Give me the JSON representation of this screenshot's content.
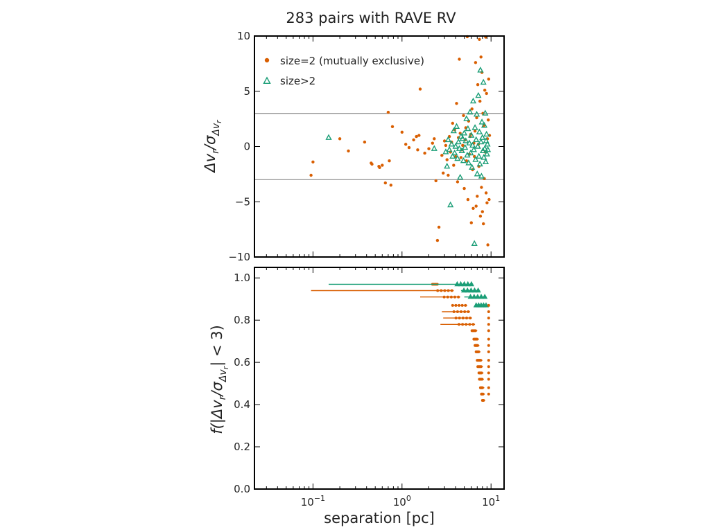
{
  "title": "283 pairs with RAVE RV",
  "colors": {
    "orange": "#d95f02",
    "teal": "#1b9e77",
    "threshold": "#999999"
  },
  "chart_data": [
    {
      "type": "scatter",
      "panel": "top",
      "ylabel": "Δv_r/σ_Δv_r",
      "ylabel_parts": {
        "main": "Δv",
        "sub_r": "r",
        "slash": "/σ",
        "sub": "Δv",
        "sub2": "r"
      },
      "xscale": "log",
      "xlim": [
        0.022,
        14
      ],
      "ylim": [
        -10,
        10
      ],
      "yticks": [
        10,
        5,
        0,
        -5,
        -10
      ],
      "ytick_labels": [
        "10",
        "5",
        "0",
        "−5",
        "−10"
      ],
      "thresholds": [
        3,
        -3
      ],
      "legend_position": "top-left",
      "legend": [
        {
          "label": "size=2 (mutually exclusive)",
          "marker": "circle",
          "color": "#d95f02"
        },
        {
          "label": "size>2",
          "marker": "triangle",
          "color": "#1b9e77"
        }
      ],
      "series": [
        {
          "name": "size=2 (mutually exclusive)",
          "marker": "circle",
          "color": "#d95f02",
          "points": [
            [
              0.095,
              -2.6
            ],
            [
              0.1,
              -1.4
            ],
            [
              0.2,
              0.7
            ],
            [
              0.25,
              -0.4
            ],
            [
              0.38,
              0.4
            ],
            [
              0.45,
              -1.5
            ],
            [
              0.46,
              -1.6
            ],
            [
              0.55,
              -1.8
            ],
            [
              0.56,
              -1.9
            ],
            [
              0.6,
              -1.7
            ],
            [
              0.65,
              -3.3
            ],
            [
              0.7,
              3.1
            ],
            [
              0.72,
              -1.3
            ],
            [
              0.75,
              -3.5
            ],
            [
              0.78,
              1.8
            ],
            [
              1.0,
              1.3
            ],
            [
              1.1,
              0.2
            ],
            [
              1.2,
              -0.1
            ],
            [
              1.35,
              0.6
            ],
            [
              1.45,
              0.9
            ],
            [
              1.5,
              -0.3
            ],
            [
              1.55,
              1.0
            ],
            [
              1.6,
              5.2
            ],
            [
              1.8,
              -0.6
            ],
            [
              2.0,
              -0.2
            ],
            [
              2.2,
              0.3
            ],
            [
              2.3,
              0.7
            ],
            [
              2.4,
              -3.1
            ],
            [
              2.5,
              -8.5
            ],
            [
              2.6,
              -7.3
            ],
            [
              2.8,
              -0.8
            ],
            [
              2.9,
              -2.4
            ],
            [
              3.0,
              0.5
            ],
            [
              3.1,
              0.1
            ],
            [
              3.2,
              -1.2
            ],
            [
              3.3,
              -2.6
            ],
            [
              3.4,
              0.9
            ],
            [
              3.5,
              -0.5
            ],
            [
              3.6,
              0.4
            ],
            [
              3.7,
              2.1
            ],
            [
              3.8,
              -1.7
            ],
            [
              3.9,
              1.5
            ],
            [
              4.0,
              -0.9
            ],
            [
              4.1,
              3.9
            ],
            [
              4.2,
              -3.2
            ],
            [
              4.3,
              0.8
            ],
            [
              4.4,
              7.9
            ],
            [
              4.5,
              1.2
            ],
            [
              4.6,
              -1.0
            ],
            [
              4.7,
              -0.3
            ],
            [
              4.8,
              0.1
            ],
            [
              4.9,
              2.8
            ],
            [
              5.0,
              -3.8
            ],
            [
              5.1,
              0.6
            ],
            [
              5.2,
              1.7
            ],
            [
              5.3,
              -1.3
            ],
            [
              5.4,
              10.0
            ],
            [
              5.5,
              -4.8
            ],
            [
              5.6,
              2.3
            ],
            [
              5.7,
              -0.7
            ],
            [
              5.8,
              0.9
            ],
            [
              5.9,
              1.1
            ],
            [
              6.0,
              -6.9
            ],
            [
              6.1,
              3.4
            ],
            [
              6.2,
              -2.1
            ],
            [
              6.3,
              -5.6
            ],
            [
              6.4,
              0.3
            ],
            [
              6.5,
              -0.9
            ],
            [
              6.6,
              1.4
            ],
            [
              6.7,
              7.6
            ],
            [
              6.8,
              -5.4
            ],
            [
              6.9,
              2.6
            ],
            [
              7.0,
              -4.5
            ],
            [
              7.1,
              5.6
            ],
            [
              7.2,
              0.2
            ],
            [
              7.3,
              -1.8
            ],
            [
              7.4,
              9.7
            ],
            [
              7.5,
              4.1
            ],
            [
              7.6,
              -6.3
            ],
            [
              7.7,
              8.1
            ],
            [
              7.8,
              -3.7
            ],
            [
              7.9,
              6.7
            ],
            [
              8.0,
              -5.9
            ],
            [
              8.1,
              3.0
            ],
            [
              8.2,
              -7.0
            ],
            [
              8.3,
              1.9
            ],
            [
              8.4,
              -2.9
            ],
            [
              8.5,
              5.1
            ],
            [
              8.6,
              -0.5
            ],
            [
              8.7,
              9.9
            ],
            [
              8.8,
              -4.2
            ],
            [
              8.9,
              4.8
            ],
            [
              9.0,
              -5.1
            ],
            [
              9.1,
              0.7
            ],
            [
              9.2,
              -8.9
            ],
            [
              9.3,
              2.4
            ],
            [
              9.4,
              6.1
            ],
            [
              9.5,
              -4.8
            ],
            [
              9.6,
              1.0
            ]
          ]
        },
        {
          "name": "size>2",
          "marker": "triangle",
          "color": "#1b9e77",
          "points": [
            [
              0.15,
              0.8
            ],
            [
              2.3,
              -0.2
            ],
            [
              3.1,
              -0.5
            ],
            [
              3.2,
              -1.8
            ],
            [
              3.3,
              0.6
            ],
            [
              3.4,
              -0.3
            ],
            [
              3.5,
              -5.3
            ],
            [
              3.6,
              0.2
            ],
            [
              3.7,
              -0.9
            ],
            [
              3.8,
              1.4
            ],
            [
              3.9,
              -0.6
            ],
            [
              4.0,
              0.0
            ],
            [
              4.1,
              1.8
            ],
            [
              4.2,
              -1.1
            ],
            [
              4.3,
              0.4
            ],
            [
              4.4,
              -0.2
            ],
            [
              4.5,
              -2.8
            ],
            [
              4.6,
              0.9
            ],
            [
              4.7,
              -0.4
            ],
            [
              4.8,
              0.7
            ],
            [
              4.9,
              -1.3
            ],
            [
              5.0,
              1.2
            ],
            [
              5.1,
              -0.1
            ],
            [
              5.2,
              0.5
            ],
            [
              5.3,
              2.5
            ],
            [
              5.4,
              -0.8
            ],
            [
              5.5,
              1.6
            ],
            [
              5.6,
              -1.5
            ],
            [
              5.7,
              0.3
            ],
            [
              5.8,
              3.1
            ],
            [
              5.9,
              -0.6
            ],
            [
              6.0,
              1.0
            ],
            [
              6.1,
              -1.9
            ],
            [
              6.2,
              0.1
            ],
            [
              6.3,
              4.1
            ],
            [
              6.4,
              -0.3
            ],
            [
              6.5,
              -8.8
            ],
            [
              6.6,
              1.7
            ],
            [
              6.7,
              -1.2
            ],
            [
              6.8,
              0.6
            ],
            [
              6.9,
              2.9
            ],
            [
              7.0,
              -2.5
            ],
            [
              7.1,
              0.0
            ],
            [
              7.2,
              4.6
            ],
            [
              7.3,
              -0.9
            ],
            [
              7.4,
              1.3
            ],
            [
              7.5,
              -1.6
            ],
            [
              7.6,
              6.9
            ],
            [
              7.7,
              0.4
            ],
            [
              7.8,
              -2.7
            ],
            [
              7.9,
              2.2
            ],
            [
              8.0,
              0.8
            ],
            [
              8.1,
              -0.4
            ],
            [
              8.2,
              5.8
            ],
            [
              8.3,
              -1.0
            ],
            [
              8.4,
              1.9
            ],
            [
              8.5,
              -0.2
            ],
            [
              8.6,
              3.0
            ],
            [
              8.7,
              -1.4
            ],
            [
              8.8,
              0.5
            ],
            [
              8.9,
              1.1
            ],
            [
              9.0,
              -0.7
            ],
            [
              9.1,
              0.2
            ],
            [
              9.2,
              -0.3
            ]
          ]
        }
      ]
    },
    {
      "type": "scatter",
      "panel": "bottom",
      "ylabel": "f(|Δv_r/σ_Δv_r| < 3)",
      "ylabel_parts": {
        "pre": "f(|Δv",
        "sub_r": "r",
        "slash": "/σ",
        "sub": "Δv",
        "sub2": "r",
        "post": "| < 3)"
      },
      "xlabel": "separation [pc]",
      "xscale": "log",
      "xlim": [
        0.022,
        14
      ],
      "ylim": [
        0,
        1.05
      ],
      "yticks": [
        0,
        0.2,
        0.4,
        0.6,
        0.8,
        1.0
      ],
      "ytick_labels": [
        "0.0",
        "0.2",
        "0.4",
        "0.6",
        "0.8",
        "1.0"
      ],
      "xticks": [
        0.1,
        1,
        10
      ],
      "xtick_labels": [
        {
          "base": "10",
          "exp": "−1"
        },
        {
          "base": "10",
          "exp": "0"
        },
        {
          "base": "10",
          "exp": "1"
        }
      ],
      "series": [
        {
          "name": "size=2 (mutually exclusive)",
          "marker": "circle",
          "color": "#d95f02",
          "bins": [
            {
              "y": 0.97,
              "xmin": 2.2,
              "xmax": 2.6
            },
            {
              "y": 0.94,
              "xmin": 0.095,
              "xmax": 3.8
            },
            {
              "y": 0.91,
              "xmin": 1.6,
              "xmax": 4.5
            },
            {
              "y": 0.87,
              "xmin": 3.7,
              "xmax": 5.4
            },
            {
              "y": 0.84,
              "xmin": 2.8,
              "xmax": 5.8
            },
            {
              "y": 0.81,
              "xmin": 2.9,
              "xmax": 6.1
            },
            {
              "y": 0.78,
              "xmin": 2.7,
              "xmax": 6.6
            },
            {
              "y": 0.75,
              "xmin": 6.1,
              "xmax": 7.0
            },
            {
              "y": 0.71,
              "xmin": 6.4,
              "xmax": 7.3
            },
            {
              "y": 0.68,
              "xmin": 6.6,
              "xmax": 7.4
            },
            {
              "y": 0.65,
              "xmin": 6.8,
              "xmax": 7.6
            },
            {
              "y": 0.61,
              "xmin": 7.0,
              "xmax": 8.0
            },
            {
              "y": 0.58,
              "xmin": 7.1,
              "xmax": 8.1
            },
            {
              "y": 0.55,
              "xmin": 7.3,
              "xmax": 8.2
            },
            {
              "y": 0.52,
              "xmin": 7.4,
              "xmax": 8.3
            },
            {
              "y": 0.48,
              "xmin": 7.6,
              "xmax": 8.4
            },
            {
              "y": 0.45,
              "xmin": 7.8,
              "xmax": 8.5
            },
            {
              "y": 0.42,
              "xmin": 8.0,
              "xmax": 8.6
            }
          ],
          "singles": [
            [
              9.4,
              0.87
            ],
            [
              9.4,
              0.84
            ],
            [
              9.4,
              0.81
            ],
            [
              9.4,
              0.78
            ],
            [
              9.4,
              0.75
            ],
            [
              9.4,
              0.71
            ],
            [
              9.4,
              0.68
            ],
            [
              9.4,
              0.65
            ],
            [
              9.4,
              0.61
            ],
            [
              9.4,
              0.58
            ],
            [
              9.4,
              0.55
            ],
            [
              9.4,
              0.52
            ],
            [
              9.4,
              0.48
            ],
            [
              9.4,
              0.45
            ]
          ]
        },
        {
          "name": "size>2",
          "marker": "triangle",
          "color": "#1b9e77",
          "bins": [
            {
              "y": 0.97,
              "xmin": 0.15,
              "xmax": 6.3
            },
            {
              "y": 0.94,
              "xmin": 4.6,
              "xmax": 7.5
            },
            {
              "y": 0.91,
              "xmin": 5.0,
              "xmax": 8.9
            },
            {
              "y": 0.87,
              "xmin": 6.8,
              "xmax": 9.2
            }
          ]
        }
      ]
    }
  ]
}
